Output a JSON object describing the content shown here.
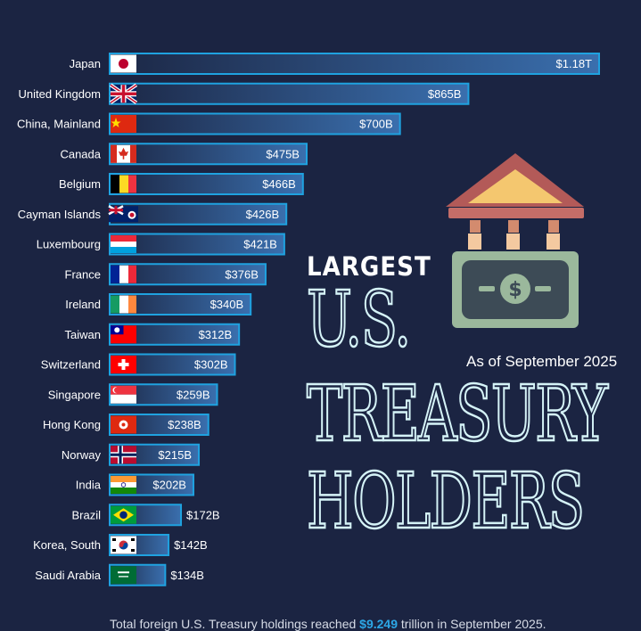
{
  "chart_data": {
    "type": "bar",
    "orientation": "horizontal",
    "categories": [
      "Japan",
      "United Kingdom",
      "China, Mainland",
      "Canada",
      "Belgium",
      "Cayman Islands",
      "Luxembourg",
      "France",
      "Ireland",
      "Taiwan",
      "Switzerland",
      "Singapore",
      "Hong Kong",
      "Norway",
      "India",
      "Brazil",
      "Korea, South",
      "Saudi Arabia"
    ],
    "values": [
      1180,
      865,
      700,
      475,
      466,
      426,
      421,
      376,
      340,
      312,
      302,
      259,
      238,
      215,
      202,
      172,
      142,
      134
    ],
    "value_labels": [
      "$1.18T",
      "$865B",
      "$700B",
      "$475B",
      "$466B",
      "$426B",
      "$421B",
      "$376B",
      "$340B",
      "$312B",
      "$302B",
      "$259B",
      "$238B",
      "$215B",
      "$202B",
      "$172B",
      "$142B",
      "$134B"
    ],
    "units": "billions USD",
    "flags": [
      "japan",
      "united-kingdom",
      "china",
      "canada",
      "belgium",
      "cayman-islands",
      "luxembourg",
      "france",
      "ireland",
      "taiwan",
      "switzerland",
      "singapore",
      "hong-kong",
      "norway",
      "india",
      "brazil",
      "south-korea",
      "saudi-arabia"
    ],
    "xlim": [
      0,
      1180
    ],
    "grid": false,
    "title_line1": "LARGEST",
    "title_line2": "U.S.",
    "title_line3": "TREASURY",
    "title_line4": "HOLDERS",
    "subtitle": "As of September 2025"
  },
  "footer": {
    "text_before": "Total foreign U.S. Treasury holdings reached ",
    "highlight": "$9.249",
    "text_after": " trillion in September 2025."
  },
  "colors": {
    "background": "#1b2442",
    "bar_border": "#1fa2e0",
    "bar_fill_light": "#3a6fae",
    "bar_fill_dark": "#1c2745",
    "highlight": "#2da7e6",
    "title_outline": "#d5f3f7"
  },
  "icons": {
    "illustration": "bank-building-with-dollar-bill-icon"
  }
}
